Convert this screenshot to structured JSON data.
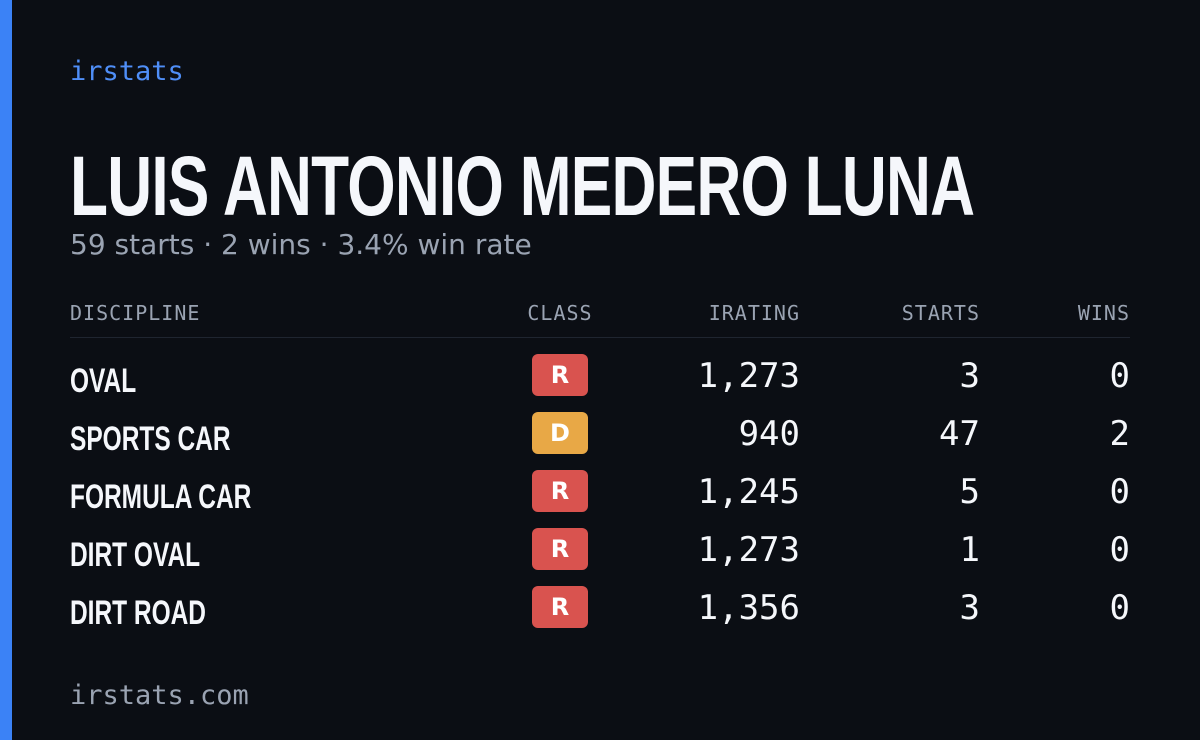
{
  "brand": "irstats",
  "driver": {
    "name": "LUIS ANTONIO MEDERO LUNA",
    "summary": "59 starts · 2 wins · 3.4% win rate"
  },
  "table": {
    "headers": [
      "DISCIPLINE",
      "CLASS",
      "IRATING",
      "STARTS",
      "WINS"
    ],
    "rows": [
      [
        "OVAL",
        "R",
        "1,273",
        "3",
        "0"
      ],
      [
        "SPORTS CAR",
        "D",
        "940",
        "47",
        "2"
      ],
      [
        "FORMULA CAR",
        "R",
        "1,245",
        "5",
        "0"
      ],
      [
        "DIRT OVAL",
        "R",
        "1,273",
        "1",
        "0"
      ],
      [
        "DIRT ROAD",
        "R",
        "1,356",
        "3",
        "0"
      ]
    ],
    "class_colors": {
      "R": "#d9534f",
      "D": "#e8a846"
    }
  },
  "footer": "irstats.com"
}
